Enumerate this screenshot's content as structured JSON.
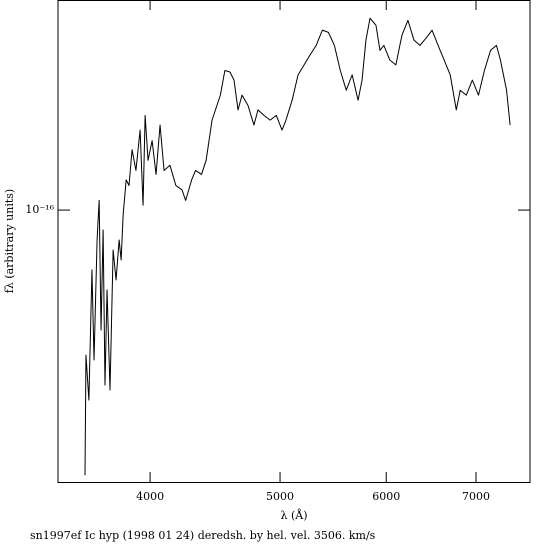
{
  "chart_data": {
    "type": "line",
    "title": "sn1997ef Ic hyp (1998 01 24) deredsh. by hel. vel.  3506. km/s",
    "x_label": "λ (Å)",
    "y_label": "fλ (arbitrary units)",
    "xscale": "log",
    "yscale": "log",
    "grid": false,
    "xlim": [
      3415,
      7680
    ],
    "ylim": [
      1.94e-17,
      3.55e-16
    ],
    "xticks": [
      4000,
      5000,
      6000,
      7000
    ],
    "yticks": [
      {
        "value": 1e-16,
        "label": "10⁻¹⁶"
      }
    ],
    "x": [
      3577,
      3583,
      3601,
      3620,
      3633,
      3652,
      3665,
      3677,
      3690,
      3702,
      3715,
      3734,
      3754,
      3773,
      3793,
      3806,
      3819,
      3839,
      3858,
      3878,
      3904,
      3932,
      3952,
      3966,
      3986,
      4014,
      4041,
      4069,
      4097,
      4139,
      4181,
      4225,
      4252,
      4296,
      4325,
      4369,
      4404,
      4449,
      4513,
      4548,
      4588,
      4620,
      4652,
      4684,
      4732,
      4781,
      4814,
      4864,
      4916,
      4968,
      5017,
      5051,
      5105,
      5157,
      5211,
      5265,
      5320,
      5377,
      5433,
      5489,
      5545,
      5602,
      5659,
      5717,
      5756,
      5795,
      5835,
      5895,
      5936,
      5976,
      6038,
      6100,
      6164,
      6228,
      6292,
      6358,
      6424,
      6491,
      6559,
      6628,
      6697,
      6767,
      6813,
      6884,
      6956,
      7030,
      7102,
      7177,
      7250,
      7300,
      7377,
      7422
    ],
    "series": [
      {
        "name": "sn1997ef",
        "color": "#000000",
        "values": [
          2.02e-17,
          4.17e-17,
          3.18e-17,
          6.97e-17,
          4.05e-17,
          8.35e-17,
          1.06e-16,
          4.85e-17,
          8.87e-17,
          3.48e-17,
          6.18e-17,
          3.38e-17,
          7.86e-17,
          6.56e-17,
          8.35e-17,
          7.4e-17,
          9.7e-17,
          1.2e-16,
          1.16e-16,
          1.44e-16,
          1.27e-16,
          1.62e-16,
          1.03e-16,
          1.77e-16,
          1.35e-16,
          1.52e-16,
          1.24e-16,
          1.67e-16,
          1.27e-16,
          1.31e-16,
          1.16e-16,
          1.13e-16,
          1.06e-16,
          1.2e-16,
          1.27e-16,
          1.24e-16,
          1.35e-16,
          1.72e-16,
          2e-16,
          2.32e-16,
          2.3e-16,
          2.19e-16,
          1.83e-16,
          2e-16,
          1.88e-16,
          1.67e-16,
          1.83e-16,
          1.77e-16,
          1.72e-16,
          1.77e-16,
          1.62e-16,
          1.72e-16,
          1.94e-16,
          2.26e-16,
          2.4e-16,
          2.55e-16,
          2.7e-16,
          2.96e-16,
          2.92e-16,
          2.7e-16,
          2.32e-16,
          2.06e-16,
          2.26e-16,
          1.94e-16,
          2.19e-16,
          2.79e-16,
          3.18e-16,
          3.05e-16,
          2.62e-16,
          2.7e-16,
          2.47e-16,
          2.4e-16,
          2.87e-16,
          3.14e-16,
          2.79e-16,
          2.7e-16,
          2.82e-16,
          2.96e-16,
          2.7e-16,
          2.47e-16,
          2.26e-16,
          1.83e-16,
          2.06e-16,
          2e-16,
          2.19e-16,
          2e-16,
          2.32e-16,
          2.62e-16,
          2.7e-16,
          2.47e-16,
          2.06e-16,
          1.67e-16
        ]
      }
    ]
  }
}
